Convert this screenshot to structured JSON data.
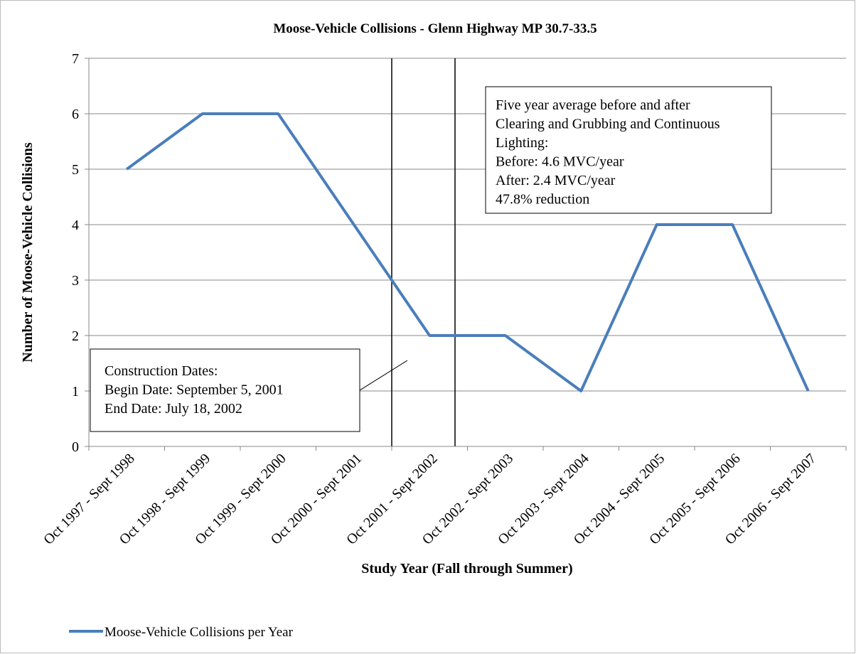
{
  "chart_data": {
    "type": "line",
    "title": "Moose-Vehicle Collisions - Glenn Highway MP 30.7-33.5",
    "x_label": "Study Year (Fall through Summer)",
    "y_label": "Number of Moose-Vehicle Collisions",
    "categories": [
      "Oct 1997 - Sept 1998",
      "Oct 1998 - Sept 1999",
      "Oct 1999 - Sept 2000",
      "Oct 2000 - Sept 2001",
      "Oct 2001 - Sept 2002",
      "Oct 2002 - Sept 2003",
      "Oct 2003 - Sept 2004",
      "Oct 2004 - Sept 2005",
      "Oct 2005 - Sept 2006",
      "Oct 2006 - Sept 2007"
    ],
    "series": [
      {
        "name": "Moose-Vehicle Collisions per Year",
        "color": "#4a7ebb",
        "values": [
          5,
          6,
          6,
          4,
          2,
          2,
          1,
          4,
          4,
          1
        ]
      }
    ],
    "ylim": [
      0,
      7
    ],
    "yticks": [
      0,
      1,
      2,
      3,
      4,
      5,
      6,
      7
    ],
    "grid": true,
    "legend": "bottom",
    "annotations": [
      {
        "lines": [
          "Five year average before and after",
          "Clearing and Grubbing and Continuous",
          "Lighting:",
          "Before: 4.6 MVC/year",
          "After: 2.4 MVC/year",
          "47.8% reduction"
        ]
      },
      {
        "lines": [
          "Construction Dates:",
          "Begin Date: September 5, 2001",
          "End Date: July 18, 2002"
        ]
      }
    ]
  }
}
